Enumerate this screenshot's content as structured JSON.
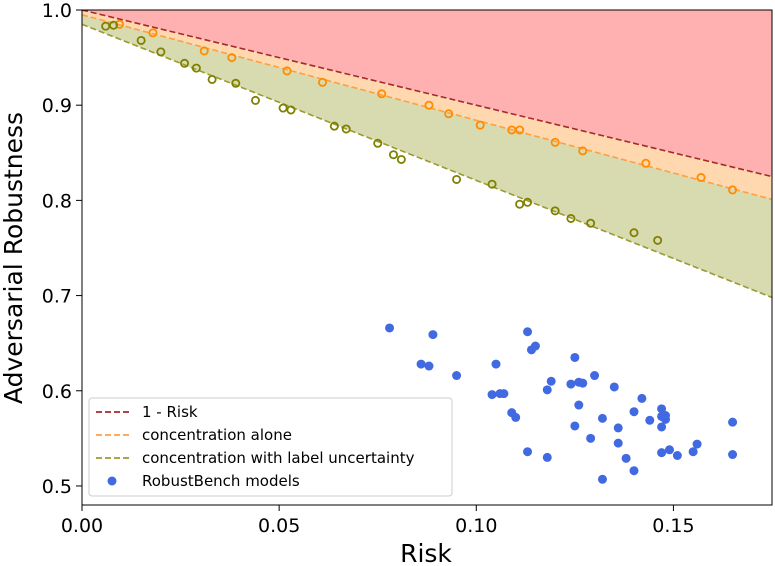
{
  "chart_data": {
    "type": "scatter",
    "title": "",
    "xlabel": "Risk",
    "ylabel": "Adversarial Robustness",
    "xlim": [
      0,
      0.175
    ],
    "ylim": [
      0.48,
      1.0
    ],
    "xticks": [
      0.0,
      0.05,
      0.1,
      0.15
    ],
    "xtick_labels": [
      "0.00",
      "0.05",
      "0.10",
      "0.15"
    ],
    "yticks": [
      0.5,
      0.6,
      0.7,
      0.8,
      0.9,
      1.0
    ],
    "ytick_labels": [
      "0.5",
      "0.6",
      "0.7",
      "0.8",
      "0.9",
      "1.0"
    ],
    "grid": false,
    "legend_position": "lower-left",
    "lines": [
      {
        "name": "1 - Risk",
        "style": "dashed",
        "color": "#a52a2a",
        "x": [
          0,
          0.175
        ],
        "y": [
          1.0,
          0.825
        ]
      },
      {
        "name": "concentration alone",
        "style": "dashed",
        "color": "#ffa040",
        "x": [
          0,
          0.175
        ],
        "y": [
          0.995,
          0.801
        ]
      },
      {
        "name": "concentration with label uncertainty",
        "style": "dashed",
        "color": "#9a9a30",
        "x": [
          0,
          0.175
        ],
        "y": [
          0.985,
          0.698
        ]
      }
    ],
    "fill_colors": {
      "top": "#ffb0b0",
      "middle": "#ffd8b0",
      "bottom": "#d8dab0"
    },
    "series": [
      {
        "name": "RobustBench models",
        "marker": "filled-circle",
        "color": "#4169e1",
        "x": [
          0.078,
          0.086,
          0.088,
          0.089,
          0.095,
          0.104,
          0.105,
          0.106,
          0.107,
          0.109,
          0.11,
          0.113,
          0.113,
          0.114,
          0.115,
          0.118,
          0.119,
          0.118,
          0.124,
          0.125,
          0.125,
          0.126,
          0.127,
          0.126,
          0.129,
          0.13,
          0.132,
          0.132,
          0.135,
          0.136,
          0.136,
          0.138,
          0.14,
          0.14,
          0.142,
          0.144,
          0.147,
          0.147,
          0.147,
          0.147,
          0.148,
          0.148,
          0.149,
          0.151,
          0.155,
          0.156,
          0.165,
          0.165
        ],
        "y": [
          0.666,
          0.628,
          0.626,
          0.659,
          0.616,
          0.596,
          0.628,
          0.597,
          0.597,
          0.577,
          0.572,
          0.662,
          0.536,
          0.643,
          0.647,
          0.601,
          0.61,
          0.53,
          0.607,
          0.635,
          0.563,
          0.585,
          0.608,
          0.609,
          0.55,
          0.616,
          0.571,
          0.507,
          0.604,
          0.561,
          0.545,
          0.529,
          0.578,
          0.516,
          0.592,
          0.569,
          0.562,
          0.535,
          0.581,
          0.573,
          0.57,
          0.574,
          0.538,
          0.532,
          0.536,
          0.544,
          0.567,
          0.533
        ]
      },
      {
        "name": "concentration alone (points)",
        "marker": "open-circle",
        "color": "#ff8c00",
        "x": [
          0.0095,
          0.018,
          0.031,
          0.038,
          0.052,
          0.061,
          0.076,
          0.088,
          0.093,
          0.101,
          0.109,
          0.111,
          0.12,
          0.127,
          0.143,
          0.157,
          0.165
        ],
        "y": [
          0.985,
          0.976,
          0.957,
          0.95,
          0.936,
          0.924,
          0.912,
          0.9,
          0.891,
          0.879,
          0.874,
          0.874,
          0.861,
          0.852,
          0.839,
          0.824,
          0.811
        ]
      },
      {
        "name": "concentration with label uncertainty (points)",
        "marker": "open-circle",
        "color": "#808000",
        "x": [
          0.006,
          0.008,
          0.015,
          0.02,
          0.026,
          0.029,
          0.033,
          0.039,
          0.044,
          0.051,
          0.053,
          0.064,
          0.067,
          0.075,
          0.079,
          0.081,
          0.095,
          0.104,
          0.111,
          0.113,
          0.12,
          0.124,
          0.129,
          0.14,
          0.146
        ],
        "y": [
          0.983,
          0.984,
          0.968,
          0.956,
          0.944,
          0.939,
          0.927,
          0.923,
          0.905,
          0.897,
          0.895,
          0.878,
          0.875,
          0.86,
          0.848,
          0.843,
          0.822,
          0.817,
          0.796,
          0.798,
          0.789,
          0.781,
          0.776,
          0.766,
          0.758
        ]
      }
    ],
    "legend": [
      {
        "label": "1 - Risk",
        "kind": "dashed-line",
        "color": "#a52a2a"
      },
      {
        "label": "concentration alone",
        "kind": "dashed-line",
        "color": "#ffa040"
      },
      {
        "label": "concentration with label uncertainty",
        "kind": "dashed-line",
        "color": "#9a9a30"
      },
      {
        "label": "RobustBench models",
        "kind": "filled-circle",
        "color": "#4169e1"
      }
    ]
  }
}
